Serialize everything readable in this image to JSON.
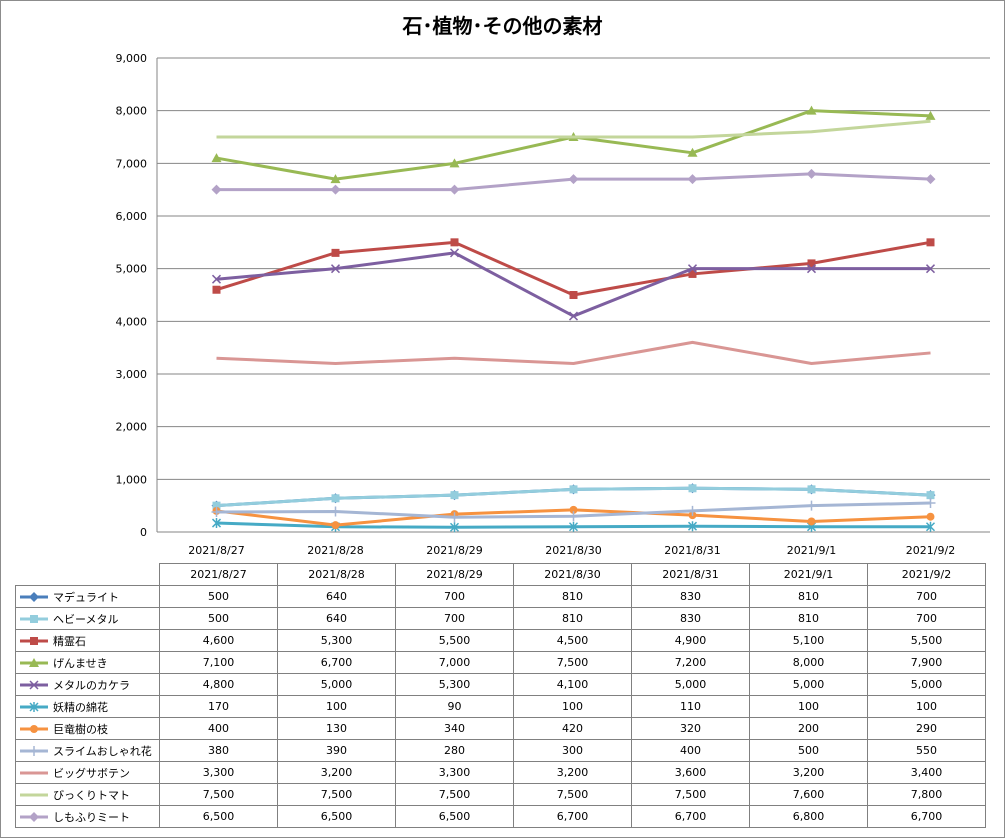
{
  "chart_data": {
    "type": "line",
    "title": "石･植物･その他の素材",
    "categories": [
      "2021/8/27",
      "2021/8/28",
      "2021/8/29",
      "2021/8/30",
      "2021/8/31",
      "2021/9/1",
      "2021/9/2"
    ],
    "ylim": [
      0,
      9000
    ],
    "yticks": [
      "0",
      "1,000",
      "2,000",
      "3,000",
      "4,000",
      "5,000",
      "6,000",
      "7,000",
      "8,000",
      "9,000"
    ],
    "grid": true,
    "legend": "data-table",
    "series": [
      {
        "name": "マデュライト",
        "color": "#4a7ebb",
        "marker": "diamond",
        "values": [
          500,
          640,
          700,
          810,
          830,
          810,
          700
        ],
        "labels": [
          "500",
          "640",
          "700",
          "810",
          "830",
          "810",
          "700"
        ]
      },
      {
        "name": "ヘビーメタル",
        "color": "#93cddd",
        "marker": "square",
        "values": [
          500,
          640,
          700,
          810,
          830,
          810,
          700
        ],
        "labels": [
          "500",
          "640",
          "700",
          "810",
          "830",
          "810",
          "700"
        ]
      },
      {
        "name": "精霊石",
        "color": "#be4b48",
        "marker": "square",
        "values": [
          4600,
          5300,
          5500,
          4500,
          4900,
          5100,
          5500
        ],
        "labels": [
          "4,600",
          "5,300",
          "5,500",
          "4,500",
          "4,900",
          "5,100",
          "5,500"
        ]
      },
      {
        "name": "げんませき",
        "color": "#98b954",
        "marker": "triangle",
        "values": [
          7100,
          6700,
          7000,
          7500,
          7200,
          8000,
          7900
        ],
        "labels": [
          "7,100",
          "6,700",
          "7,000",
          "7,500",
          "7,200",
          "8,000",
          "7,900"
        ]
      },
      {
        "name": "メタルのカケラ",
        "color": "#7d5fa0",
        "marker": "x",
        "values": [
          4800,
          5000,
          5300,
          4100,
          5000,
          5000,
          5000
        ],
        "labels": [
          "4,800",
          "5,000",
          "5,300",
          "4,100",
          "5,000",
          "5,000",
          "5,000"
        ]
      },
      {
        "name": "妖精の綿花",
        "color": "#46aac5",
        "marker": "star",
        "values": [
          170,
          100,
          90,
          100,
          110,
          100,
          100
        ],
        "labels": [
          "170",
          "100",
          "90",
          "100",
          "110",
          "100",
          "100"
        ]
      },
      {
        "name": "巨竜樹の枝",
        "color": "#f69240",
        "marker": "circle",
        "values": [
          400,
          130,
          340,
          420,
          320,
          200,
          290
        ],
        "labels": [
          "400",
          "130",
          "340",
          "420",
          "320",
          "200",
          "290"
        ]
      },
      {
        "name": "スライムおしゃれ花",
        "color": "#a5b6d4",
        "marker": "plus",
        "values": [
          380,
          390,
          280,
          300,
          400,
          500,
          550
        ],
        "labels": [
          "380",
          "390",
          "280",
          "300",
          "400",
          "500",
          "550"
        ]
      },
      {
        "name": "ビッグサボテン",
        "color": "#d99694",
        "marker": "none",
        "values": [
          3300,
          3200,
          3300,
          3200,
          3600,
          3200,
          3400
        ],
        "labels": [
          "3,300",
          "3,200",
          "3,300",
          "3,200",
          "3,600",
          "3,200",
          "3,400"
        ]
      },
      {
        "name": "びっくりトマト",
        "color": "#c3d69b",
        "marker": "none",
        "values": [
          7500,
          7500,
          7500,
          7500,
          7500,
          7600,
          7800
        ],
        "labels": [
          "7,500",
          "7,500",
          "7,500",
          "7,500",
          "7,500",
          "7,600",
          "7,800"
        ]
      },
      {
        "name": "しもふりミート",
        "color": "#b3a2c7",
        "marker": "diamond",
        "values": [
          6500,
          6500,
          6500,
          6700,
          6700,
          6800,
          6700
        ],
        "labels": [
          "6,500",
          "6,500",
          "6,500",
          "6,700",
          "6,700",
          "6,800",
          "6,700"
        ]
      }
    ]
  }
}
